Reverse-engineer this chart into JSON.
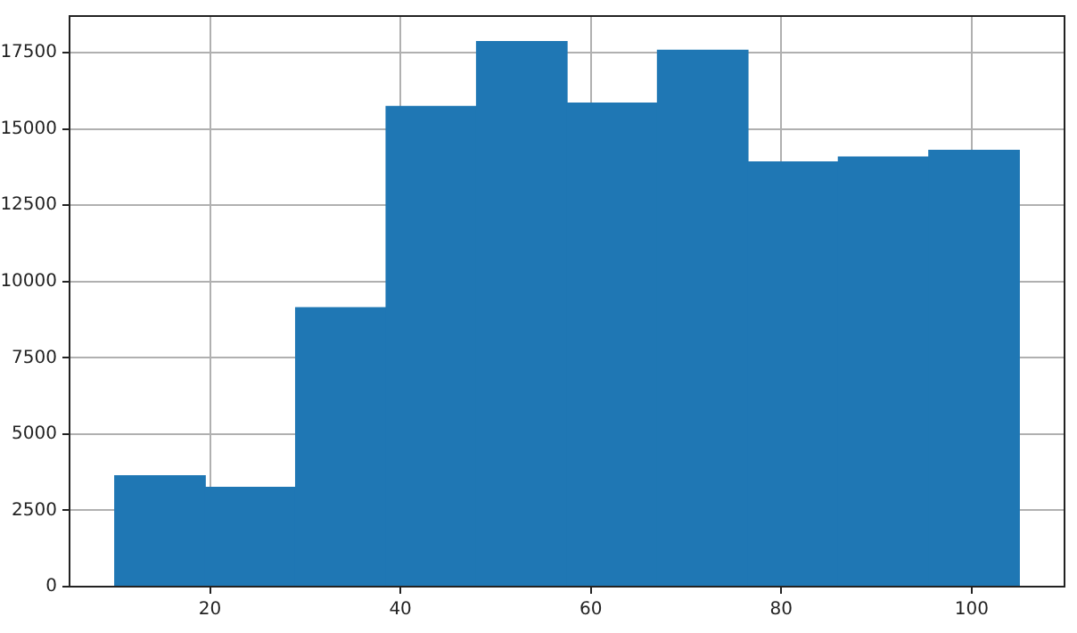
{
  "chart_data": {
    "type": "histogram",
    "bins": [
      10,
      19.5,
      29,
      38.5,
      48,
      57.5,
      67,
      76.5,
      86,
      95.5,
      105
    ],
    "values": [
      3630,
      3250,
      9140,
      15740,
      17860,
      15850,
      17580,
      13920,
      14080,
      14300
    ],
    "color": "#1f77b4",
    "xlim": [
      5.25,
      109.75
    ],
    "xticks": [
      20,
      40,
      60,
      80,
      100
    ],
    "ylim": [
      0,
      18700
    ],
    "yticks": [
      0,
      2500,
      5000,
      7500,
      10000,
      12500,
      15000,
      17500
    ],
    "grid": true
  }
}
